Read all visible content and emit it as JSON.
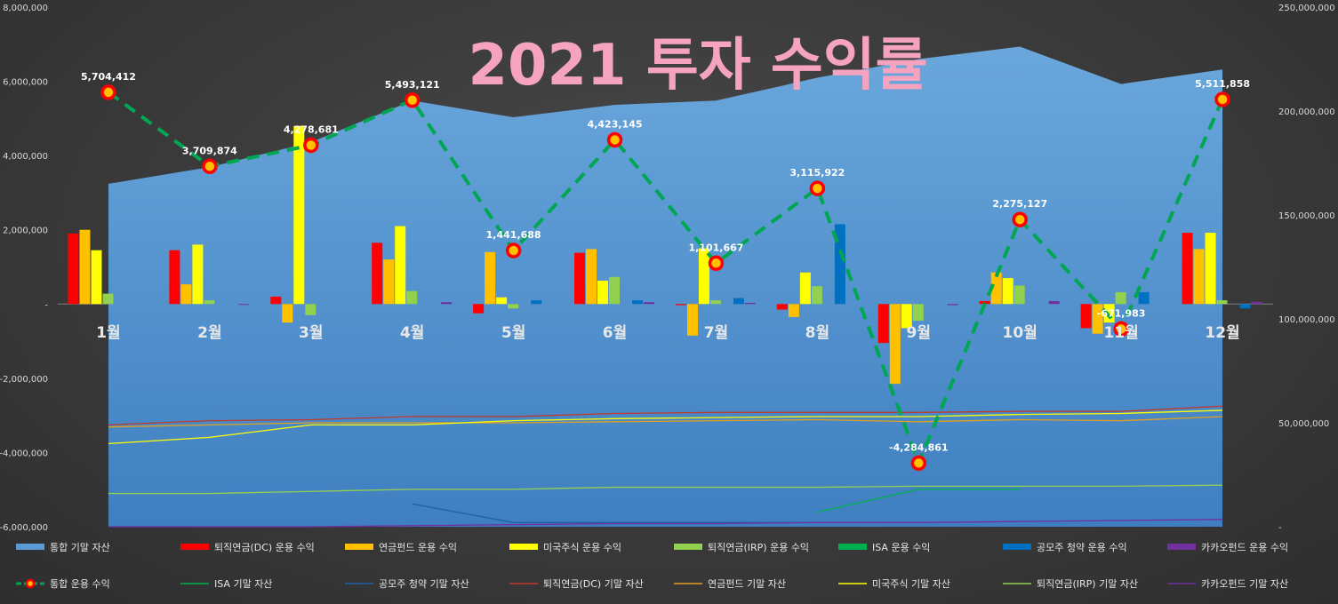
{
  "colors": {
    "background": "#3a3a3a",
    "area_total": "#5b9bd5",
    "title": "#f5a3bf",
    "total_line": "#00a651",
    "total_marker_fill": "#ffc000",
    "total_marker_edge": "#ff0000"
  },
  "chart_data": {
    "type": "bar",
    "title": "2021 투자 수익률",
    "categories": [
      "1월",
      "2월",
      "3월",
      "4월",
      "5월",
      "6월",
      "7월",
      "8월",
      "9월",
      "10월",
      "11월",
      "12월"
    ],
    "left_axis": {
      "ylim": [
        -6000000,
        8000000
      ],
      "ticks": [
        "8,000,000",
        "6,000,000",
        "4,000,000",
        "2,000,000",
        "-",
        "-2,000,000",
        "-4,000,000",
        "-6,000,000"
      ]
    },
    "right_axis": {
      "ylim": [
        0,
        250000000
      ],
      "ticks": [
        "250,000,000",
        "200,000,000",
        "150,000,000",
        "100,000,000",
        "50,000,000",
        "-"
      ]
    },
    "bar_series": [
      {
        "name": "퇴직연금(DC) 운용 수익",
        "color": "#ff0000",
        "values": [
          1900000,
          1450000,
          200000,
          1650000,
          -250000,
          1380000,
          -30000,
          -150000,
          -1050000,
          80000,
          -650000,
          1920000
        ]
      },
      {
        "name": "연금펀드 운용 수익",
        "color": "#ffc000",
        "values": [
          2000000,
          530000,
          -500000,
          1200000,
          1400000,
          1480000,
          -850000,
          -350000,
          -2150000,
          850000,
          -800000,
          1480000
        ]
      },
      {
        "name": "미국주식 운용 수익",
        "color": "#ffff00",
        "values": [
          1450000,
          1600000,
          4800000,
          2100000,
          180000,
          630000,
          1500000,
          850000,
          -650000,
          700000,
          -500000,
          1920000
        ]
      },
      {
        "name": "퇴직연금(IRP) 운용 수익",
        "color": "#92d050",
        "values": [
          280000,
          100000,
          -300000,
          350000,
          -120000,
          730000,
          100000,
          480000,
          -450000,
          500000,
          320000,
          100000
        ]
      },
      {
        "name": "ISA 운용 수익",
        "color": "#00b050",
        "values": [
          0,
          0,
          0,
          0,
          0,
          0,
          0,
          0,
          0,
          0,
          0,
          0
        ]
      },
      {
        "name": "공모주 청약 운용 수익",
        "color": "#0070c0",
        "values": [
          0,
          0,
          0,
          0,
          100000,
          100000,
          160000,
          2150000,
          0,
          0,
          320000,
          -120000
        ]
      },
      {
        "name": "카카오펀드 운용 수익",
        "color": "#7030a0",
        "values": [
          0,
          -20000,
          0,
          50000,
          0,
          50000,
          30000,
          0,
          -30000,
          80000,
          0,
          60000
        ]
      }
    ],
    "area_series": {
      "name": "통합 기말 자산",
      "axis": "right",
      "values": [
        165000000,
        173000000,
        185000000,
        205000000,
        197000000,
        203000000,
        205000000,
        216000000,
        225000000,
        231000000,
        213000000,
        220000000
      ]
    },
    "line_series": {
      "name": "통합 운용 수익",
      "values": [
        5704412,
        3709874,
        4278681,
        5493121,
        1441688,
        4423145,
        1101667,
        3115922,
        -4284861,
        2275127,
        -671983,
        5511858
      ],
      "labels": [
        "5,704,412",
        "3,709,874",
        "4,278,681",
        "5,493,121",
        "1,441,688",
        "4,423,145",
        "1,101,667",
        "3,115,922",
        "-4,284,861",
        "2,275,127",
        "-671,983",
        "5,511,858"
      ]
    },
    "asset_lines": [
      {
        "name": "ISA 기말 자산",
        "axis": "right",
        "color": "#00b050",
        "values": [
          null,
          null,
          null,
          null,
          null,
          null,
          null,
          7000000,
          18000000,
          18000000,
          null,
          null
        ]
      },
      {
        "name": "공모주 청약 기말 자산",
        "axis": "right",
        "color": "#1f5fa8",
        "values": [
          null,
          null,
          null,
          11000000,
          2000000,
          2000000,
          2000000,
          2000000,
          null,
          null,
          null,
          null
        ]
      },
      {
        "name": "퇴직연금(DC) 기말 자산",
        "axis": "right",
        "color": "#c0392b",
        "values": [
          49000000,
          51000000,
          51500000,
          53000000,
          53000000,
          54500000,
          55000000,
          55000000,
          55000000,
          55500000,
          55500000,
          58000000
        ]
      },
      {
        "name": "연금펀드 기말 자산",
        "axis": "right",
        "color": "#e0a020",
        "values": [
          48000000,
          49000000,
          50000000,
          50000000,
          50000000,
          50500000,
          51000000,
          51500000,
          50500000,
          51500000,
          51000000,
          53000000
        ]
      },
      {
        "name": "미국주식 기말 자산",
        "axis": "right",
        "color": "#ffff00",
        "values": [
          40000000,
          43000000,
          49000000,
          49000000,
          51000000,
          52000000,
          52500000,
          53000000,
          53000000,
          54000000,
          54500000,
          56000000
        ]
      },
      {
        "name": "퇴직연금(IRP) 기말 자산",
        "axis": "right",
        "color": "#92d050",
        "values": [
          16000000,
          16000000,
          17000000,
          18000000,
          18000000,
          19000000,
          19000000,
          19000000,
          19500000,
          19500000,
          19500000,
          20000000
        ]
      },
      {
        "name": "카카오펀드 기말 자산",
        "axis": "right",
        "color": "#7030a0",
        "values": [
          0,
          0,
          0,
          500000,
          1000000,
          1500000,
          1500000,
          2000000,
          2000000,
          2500000,
          3000000,
          3500000
        ]
      }
    ],
    "legend_position": "bottom"
  }
}
